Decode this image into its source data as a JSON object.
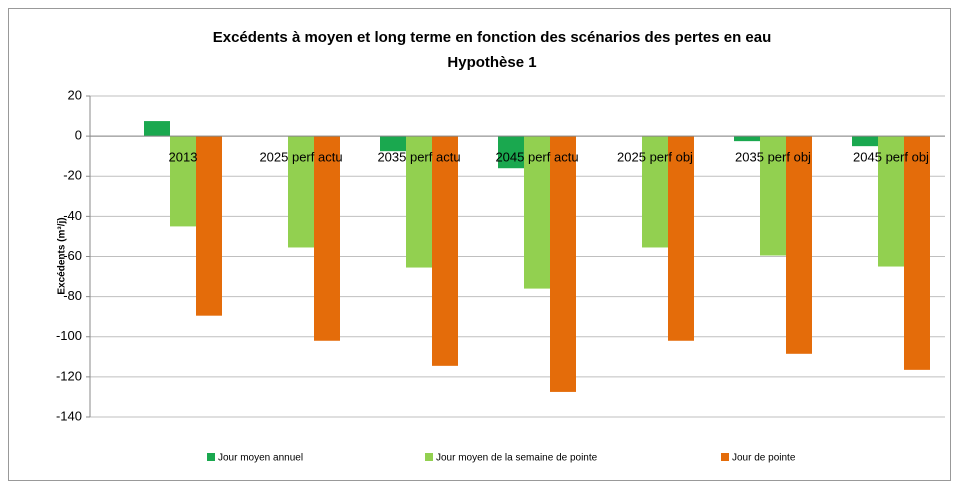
{
  "chart_data": {
    "type": "bar",
    "title": "Excédents à moyen et long terme en fonction des scénarios des pertes en eau",
    "subtitle": "Hypothèse 1",
    "y_label": "Excédents  (m³/j)",
    "categories": [
      "2013",
      "2025 perf actu",
      "2035 perf actu",
      "2045 perf actu",
      "2025 perf obj",
      "2035 perf obj",
      "2045 perf obj"
    ],
    "series": [
      {
        "name": "Jour moyen annuel",
        "color": "#1aa84f",
        "values": [
          7.5,
          0,
          -7.5,
          -16,
          0,
          -2.5,
          -5
        ]
      },
      {
        "name": "Jour moyen de la semaine de pointe",
        "color": "#92d050",
        "values": [
          -45,
          -55.5,
          -65.5,
          -76,
          -55.5,
          -59.5,
          -65
        ]
      },
      {
        "name": "Jour de pointe",
        "color": "#e46c0a",
        "values": [
          -89.5,
          -102,
          -114.5,
          -127.5,
          -102,
          -108.5,
          -116.5
        ]
      }
    ],
    "ylim": [
      -140,
      20
    ],
    "yticks": [
      -140,
      -120,
      -100,
      -80,
      -60,
      -40,
      -20,
      0,
      20
    ],
    "grid": true,
    "legend": "bottom"
  }
}
